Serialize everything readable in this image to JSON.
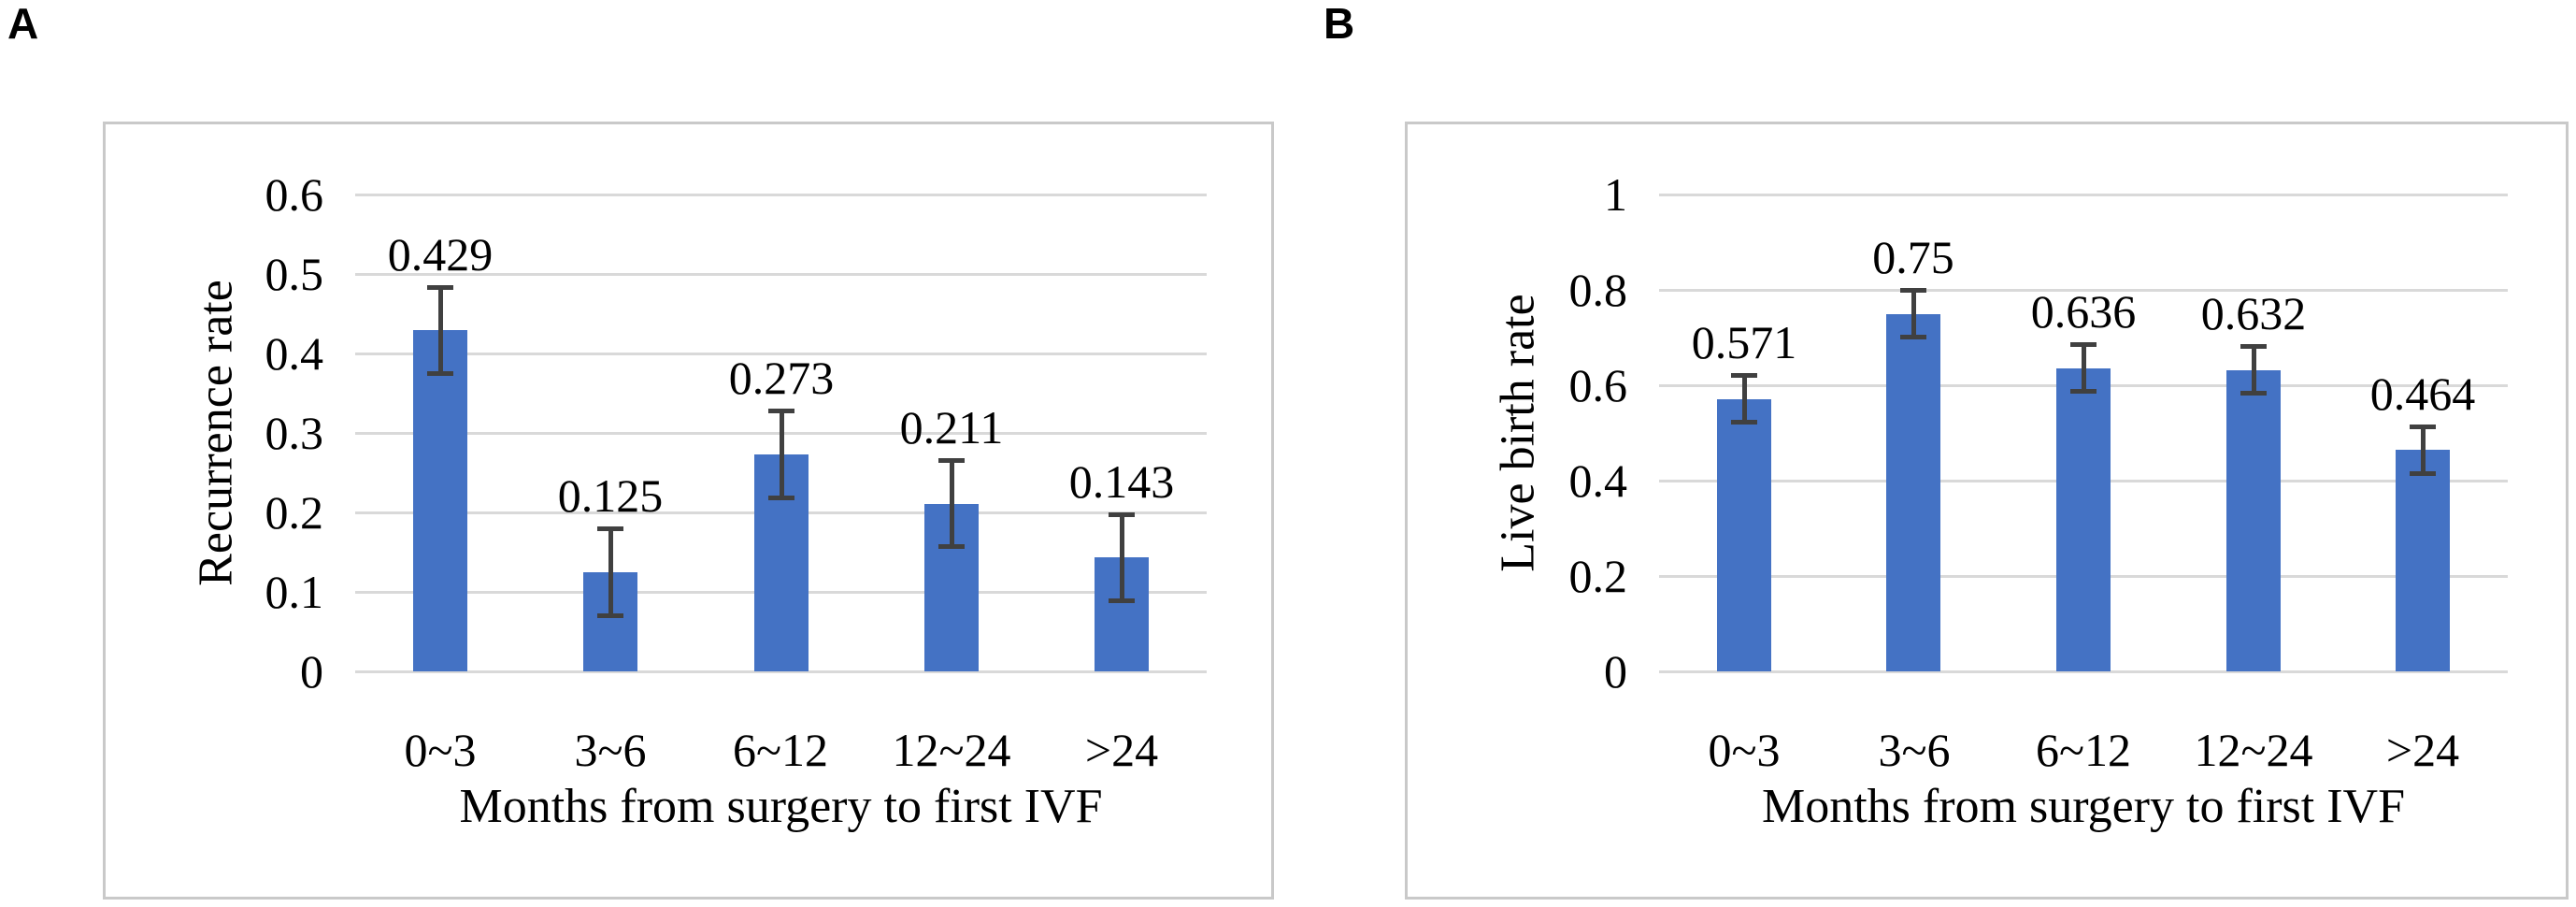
{
  "figure": {
    "panel_count": 2
  },
  "chart_data": [
    {
      "type": "bar",
      "panel_label": "A",
      "title": "",
      "ylabel": "Recurrence rate",
      "xlabel": "Months from surgery to first IVF",
      "categories": [
        "0~3",
        "3~6",
        "6~12",
        "12~24",
        ">24"
      ],
      "values": [
        0.429,
        0.125,
        0.273,
        0.211,
        0.143
      ],
      "value_labels": [
        "0.429",
        "0.125",
        "0.273",
        "0.211",
        "0.143"
      ],
      "errors": [
        0.055,
        0.055,
        0.055,
        0.055,
        0.055
      ],
      "ylim": [
        0,
        0.6
      ],
      "yticks": [
        0,
        0.1,
        0.2,
        0.3,
        0.4,
        0.5,
        0.6
      ],
      "ytick_labels": [
        "0",
        "0.1",
        "0.2",
        "0.3",
        "0.4",
        "0.5",
        "0.6"
      ],
      "grid": true,
      "legend": "none",
      "colors": {
        "bar": "#4472C4",
        "error": "#404040",
        "gridline": "#D9D9D9",
        "box_border": "#C9C9C9",
        "text": "#000000"
      }
    },
    {
      "type": "bar",
      "panel_label": "B",
      "title": "",
      "ylabel": "Live birth rate",
      "xlabel": "Months from surgery to first IVF",
      "categories": [
        "0~3",
        "3~6",
        "6~12",
        "12~24",
        ">24"
      ],
      "values": [
        0.571,
        0.75,
        0.636,
        0.632,
        0.464
      ],
      "value_labels": [
        "0.571",
        "0.75",
        "0.636",
        "0.632",
        "0.464"
      ],
      "errors": [
        0.05,
        0.05,
        0.05,
        0.05,
        0.05
      ],
      "ylim": [
        0,
        1
      ],
      "yticks": [
        0,
        0.2,
        0.4,
        0.6,
        0.8,
        1
      ],
      "ytick_labels": [
        "0",
        "0.2",
        "0.4",
        "0.6",
        "0.8",
        "1"
      ],
      "grid": true,
      "legend": "none",
      "colors": {
        "bar": "#4472C4",
        "error": "#404040",
        "gridline": "#D9D9D9",
        "box_border": "#C9C9C9",
        "text": "#000000"
      }
    }
  ]
}
